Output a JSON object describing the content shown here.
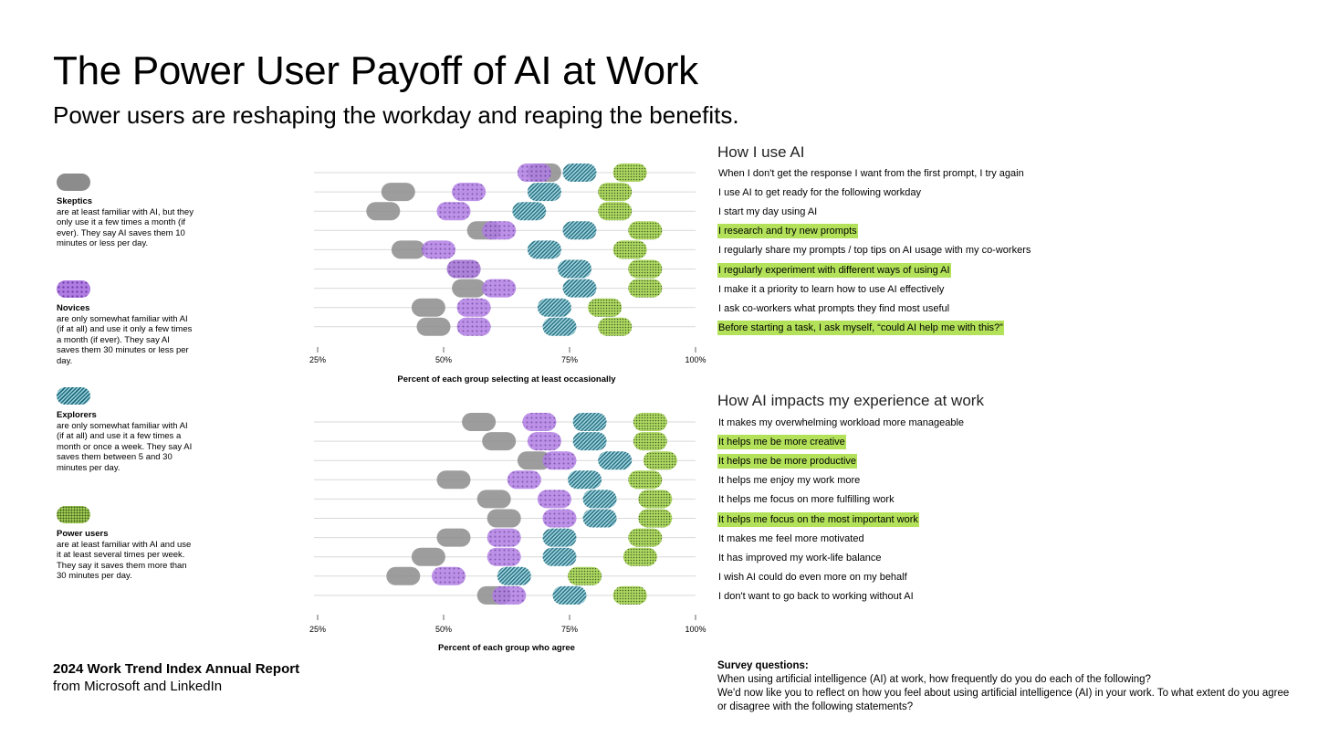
{
  "title": "The Power User Payoff of AI at Work",
  "subtitle": "Power users are reshaping the workday and reaping the benefits.",
  "colors": {
    "skeptics": "#8c8c8c",
    "novices": "#b07de3",
    "explorers": "#2e7d8f",
    "power_users": "#a9d65a",
    "highlight": "#b3e25a",
    "gridline": "#d9d9d9"
  },
  "legend": [
    {
      "key": "skeptics",
      "name": "Skeptics",
      "desc": "are at least familiar with AI, but they only use it a few times a month (if ever). They say AI saves them 10 minutes or less per day."
    },
    {
      "key": "novices",
      "name": "Novices",
      "desc": "are only somewhat familiar with AI (if at all) and use it only a few times a month (if ever). They say AI saves them 30 minutes or less per day."
    },
    {
      "key": "explorers",
      "name": "Explorers",
      "desc": "are only somewhat familiar with AI (if at all) and use it a few times a month or once a week. They say AI saves them between 5 and 30 minutes per day."
    },
    {
      "key": "power_users",
      "name": "Power users",
      "desc": "are at least familiar with AI and use it at least several times per week. They say it saves them more than 30 minutes per day."
    }
  ],
  "chart_data": [
    {
      "type": "scatter",
      "title": "How I use AI",
      "xlabel": "Percent of each group selecting at least occasionally",
      "xlim": [
        25,
        100
      ],
      "x_ticks": [
        "25%",
        "50%",
        "75%",
        "100%"
      ],
      "series_order": [
        "Skeptics",
        "Novices",
        "Explorers",
        "Power users"
      ],
      "rows": [
        {
          "label": "When I don't get the response I want from the first prompt, I try again",
          "highlight": false,
          "values": [
            70,
            68,
            77,
            87
          ]
        },
        {
          "label": "I use AI to get ready for the following workday",
          "highlight": false,
          "values": [
            41,
            55,
            70,
            84
          ]
        },
        {
          "label": "I start my day using AI",
          "highlight": false,
          "values": [
            38,
            52,
            67,
            84
          ]
        },
        {
          "label": "I research and try new prompts",
          "highlight": true,
          "values": [
            58,
            61,
            77,
            90
          ]
        },
        {
          "label": "I regularly share my prompts / top tips on AI usage with my co-workers",
          "highlight": false,
          "values": [
            43,
            49,
            70,
            87
          ]
        },
        {
          "label": "I regularly experiment with different ways of using AI",
          "highlight": true,
          "values": [
            54,
            54,
            76,
            90
          ]
        },
        {
          "label": "I make it a priority to learn how to use AI effectively",
          "highlight": false,
          "values": [
            55,
            61,
            77,
            90
          ]
        },
        {
          "label": "I ask co-workers what prompts they find most useful",
          "highlight": false,
          "values": [
            47,
            56,
            72,
            82
          ]
        },
        {
          "label": "Before starting a task, I ask myself, “could AI help me with this?”",
          "highlight": true,
          "values": [
            48,
            56,
            73,
            84
          ]
        }
      ]
    },
    {
      "type": "scatter",
      "title": "How AI impacts my experience at work",
      "xlabel": "Percent of each group who agree",
      "xlim": [
        25,
        100
      ],
      "x_ticks": [
        "25%",
        "50%",
        "75%",
        "100%"
      ],
      "series_order": [
        "Skeptics",
        "Novices",
        "Explorers",
        "Power users"
      ],
      "rows": [
        {
          "label": "It makes my overwhelming workload more manageable",
          "highlight": false,
          "values": [
            57,
            69,
            79,
            91
          ]
        },
        {
          "label": "It helps me be more creative",
          "highlight": true,
          "values": [
            61,
            70,
            79,
            91
          ]
        },
        {
          "label": "It helps me be more productive",
          "highlight": true,
          "values": [
            68,
            73,
            84,
            93
          ]
        },
        {
          "label": "It helps me enjoy my work more",
          "highlight": false,
          "values": [
            52,
            66,
            78,
            90
          ]
        },
        {
          "label": "It helps me focus on more fulfilling work",
          "highlight": false,
          "values": [
            60,
            72,
            81,
            92
          ]
        },
        {
          "label": "It helps me focus on the most important work",
          "highlight": true,
          "values": [
            62,
            73,
            81,
            92
          ]
        },
        {
          "label": "It makes me feel more motivated",
          "highlight": false,
          "values": [
            52,
            62,
            73,
            90
          ]
        },
        {
          "label": "It has improved my work-life balance",
          "highlight": false,
          "values": [
            47,
            62,
            73,
            89
          ]
        },
        {
          "label": "I wish AI could do even more on my behalf",
          "highlight": false,
          "values": [
            42,
            51,
            64,
            78
          ]
        },
        {
          "label": "I don't want to go back to working without AI",
          "highlight": false,
          "values": [
            60,
            63,
            75,
            87
          ]
        }
      ]
    }
  ],
  "footer": {
    "title": "2024 Work Trend Index Annual Report",
    "subtitle": "from Microsoft and LinkedIn"
  },
  "survey": {
    "heading": "Survey questions:",
    "questions": [
      "When using artificial intelligence (AI) at work, how frequently do you do each of the following?",
      "We'd now like you to reflect on how you feel about using artificial intelligence (AI) in your work. To what extent do you agree or disagree with the following statements?"
    ]
  }
}
